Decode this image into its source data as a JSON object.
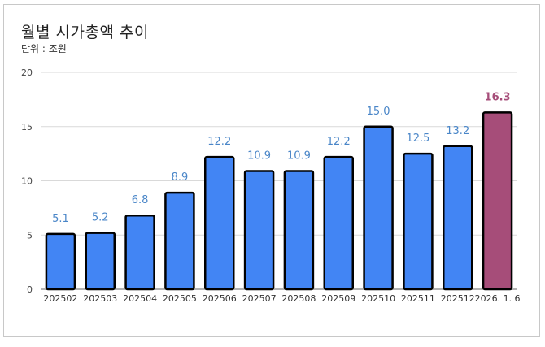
{
  "colors": {
    "bar": "#4285f4",
    "highlight_bar": "#a64d79",
    "value_label": "#4a86c8",
    "highlight_label": "#a64d79",
    "grid": "#d9d9d9",
    "bar_border": "#000000"
  },
  "chart_data": {
    "type": "bar",
    "title": "월별 시가총액 추이",
    "subtitle": "단위 : 조원",
    "categories": [
      "202502",
      "202503",
      "202504",
      "202505",
      "202506",
      "202507",
      "202508",
      "202509",
      "202510",
      "202511",
      "202512",
      "2026. 1. 6"
    ],
    "values": [
      5.1,
      5.2,
      6.8,
      8.9,
      12.2,
      10.9,
      10.9,
      12.2,
      15.0,
      12.5,
      13.2,
      16.3
    ],
    "value_labels": [
      "5.1",
      "5.2",
      "6.8",
      "8.9",
      "12.2",
      "10.9",
      "10.9",
      "12.2",
      "15.0",
      "12.5",
      "13.2",
      "16.3"
    ],
    "highlight_index": 11,
    "ylim": [
      0,
      20
    ],
    "yticks": [
      "0",
      "5",
      "10",
      "15",
      "20"
    ],
    "grid": true,
    "legend": "none"
  }
}
